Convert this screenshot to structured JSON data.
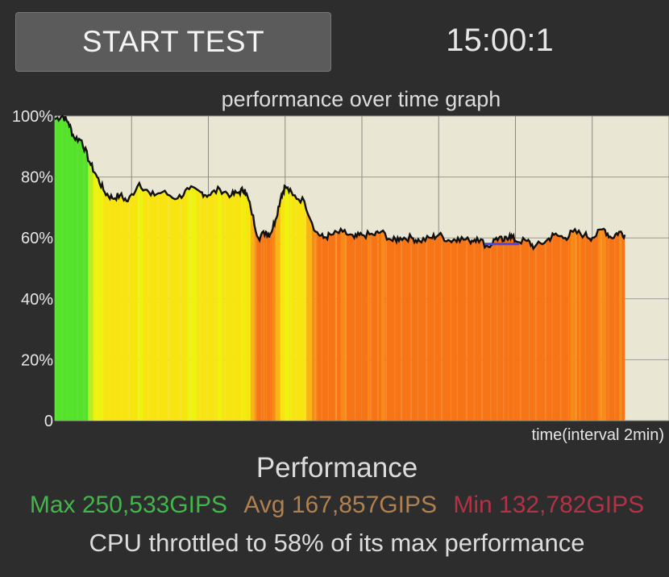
{
  "header": {
    "start_label": "START TEST",
    "timer": "15:00:1"
  },
  "graph": {
    "title": "performance over time graph",
    "x_caption": "time(interval 2min)",
    "y_ticks": [
      "100%",
      "80%",
      "60%",
      "40%",
      "20%",
      "0"
    ]
  },
  "summary": {
    "heading": "Performance",
    "max_text": "Max 250,533GIPS",
    "avg_text": "Avg 167,857GIPS",
    "min_text": "Min 132,782GIPS",
    "throttle_text": "CPU throttled to 58% of its max performance"
  },
  "colors": {
    "background": "#2d2d2d",
    "plot_bg": "#eae6d4",
    "max": "#42b64a",
    "avg": "#b0804f",
    "min": "#b23246",
    "line": "#111111",
    "baseline_marker": "#4a4ae0"
  },
  "chart_data": {
    "type": "area",
    "title": "performance over time graph",
    "xlabel": "time(interval 2min)",
    "ylabel": "",
    "ylim": [
      0,
      100
    ],
    "x_range_minutes": [
      0,
      16
    ],
    "x_grid_interval_minutes": 2,
    "y_tick_labels": [
      "100%",
      "80%",
      "60%",
      "40%",
      "20%",
      "0"
    ],
    "grid": true,
    "fill": "gradient by value: green (high) → yellow → orange → red-orange (low)",
    "series": [
      {
        "x": [
          0,
          0.2,
          0.35,
          0.5,
          0.7,
          0.9,
          1.1,
          1.3,
          1.5,
          1.7,
          1.9,
          2.2,
          2.5,
          2.8,
          3.2,
          3.5,
          3.8,
          4.0,
          4.3,
          4.6,
          4.8,
          4.95,
          5.1,
          5.3,
          5.5,
          5.6,
          5.75,
          5.9,
          6.0,
          6.2,
          6.5,
          6.8,
          7.0,
          7.2,
          7.5,
          7.8,
          8.0,
          8.3,
          8.5,
          8.8,
          9.0,
          9.3,
          9.5,
          9.8,
          10.0,
          10.3,
          10.5,
          10.8,
          11.0,
          11.3,
          11.5,
          11.7,
          11.85,
          12.0,
          12.3,
          12.5,
          12.8,
          13.0,
          13.3,
          13.5,
          13.8,
          14.0,
          14.3,
          14.5,
          14.7,
          14.85
        ],
        "y": [
          99,
          100,
          98,
          93,
          92,
          85,
          80,
          75,
          73,
          74,
          72,
          78,
          74,
          75,
          73,
          76,
          75,
          74,
          76,
          74,
          75,
          76,
          70,
          60,
          62,
          61,
          66,
          74,
          77,
          74,
          72,
          62,
          60,
          61,
          62,
          60,
          61,
          61,
          62,
          59,
          60,
          60,
          59,
          60,
          61,
          59,
          60,
          59,
          60,
          57,
          60,
          59,
          61,
          59,
          59,
          57,
          59,
          61,
          60,
          62,
          61,
          60,
          63,
          60,
          62,
          61
        ]
      }
    ],
    "marker_segment_y": 58
  }
}
